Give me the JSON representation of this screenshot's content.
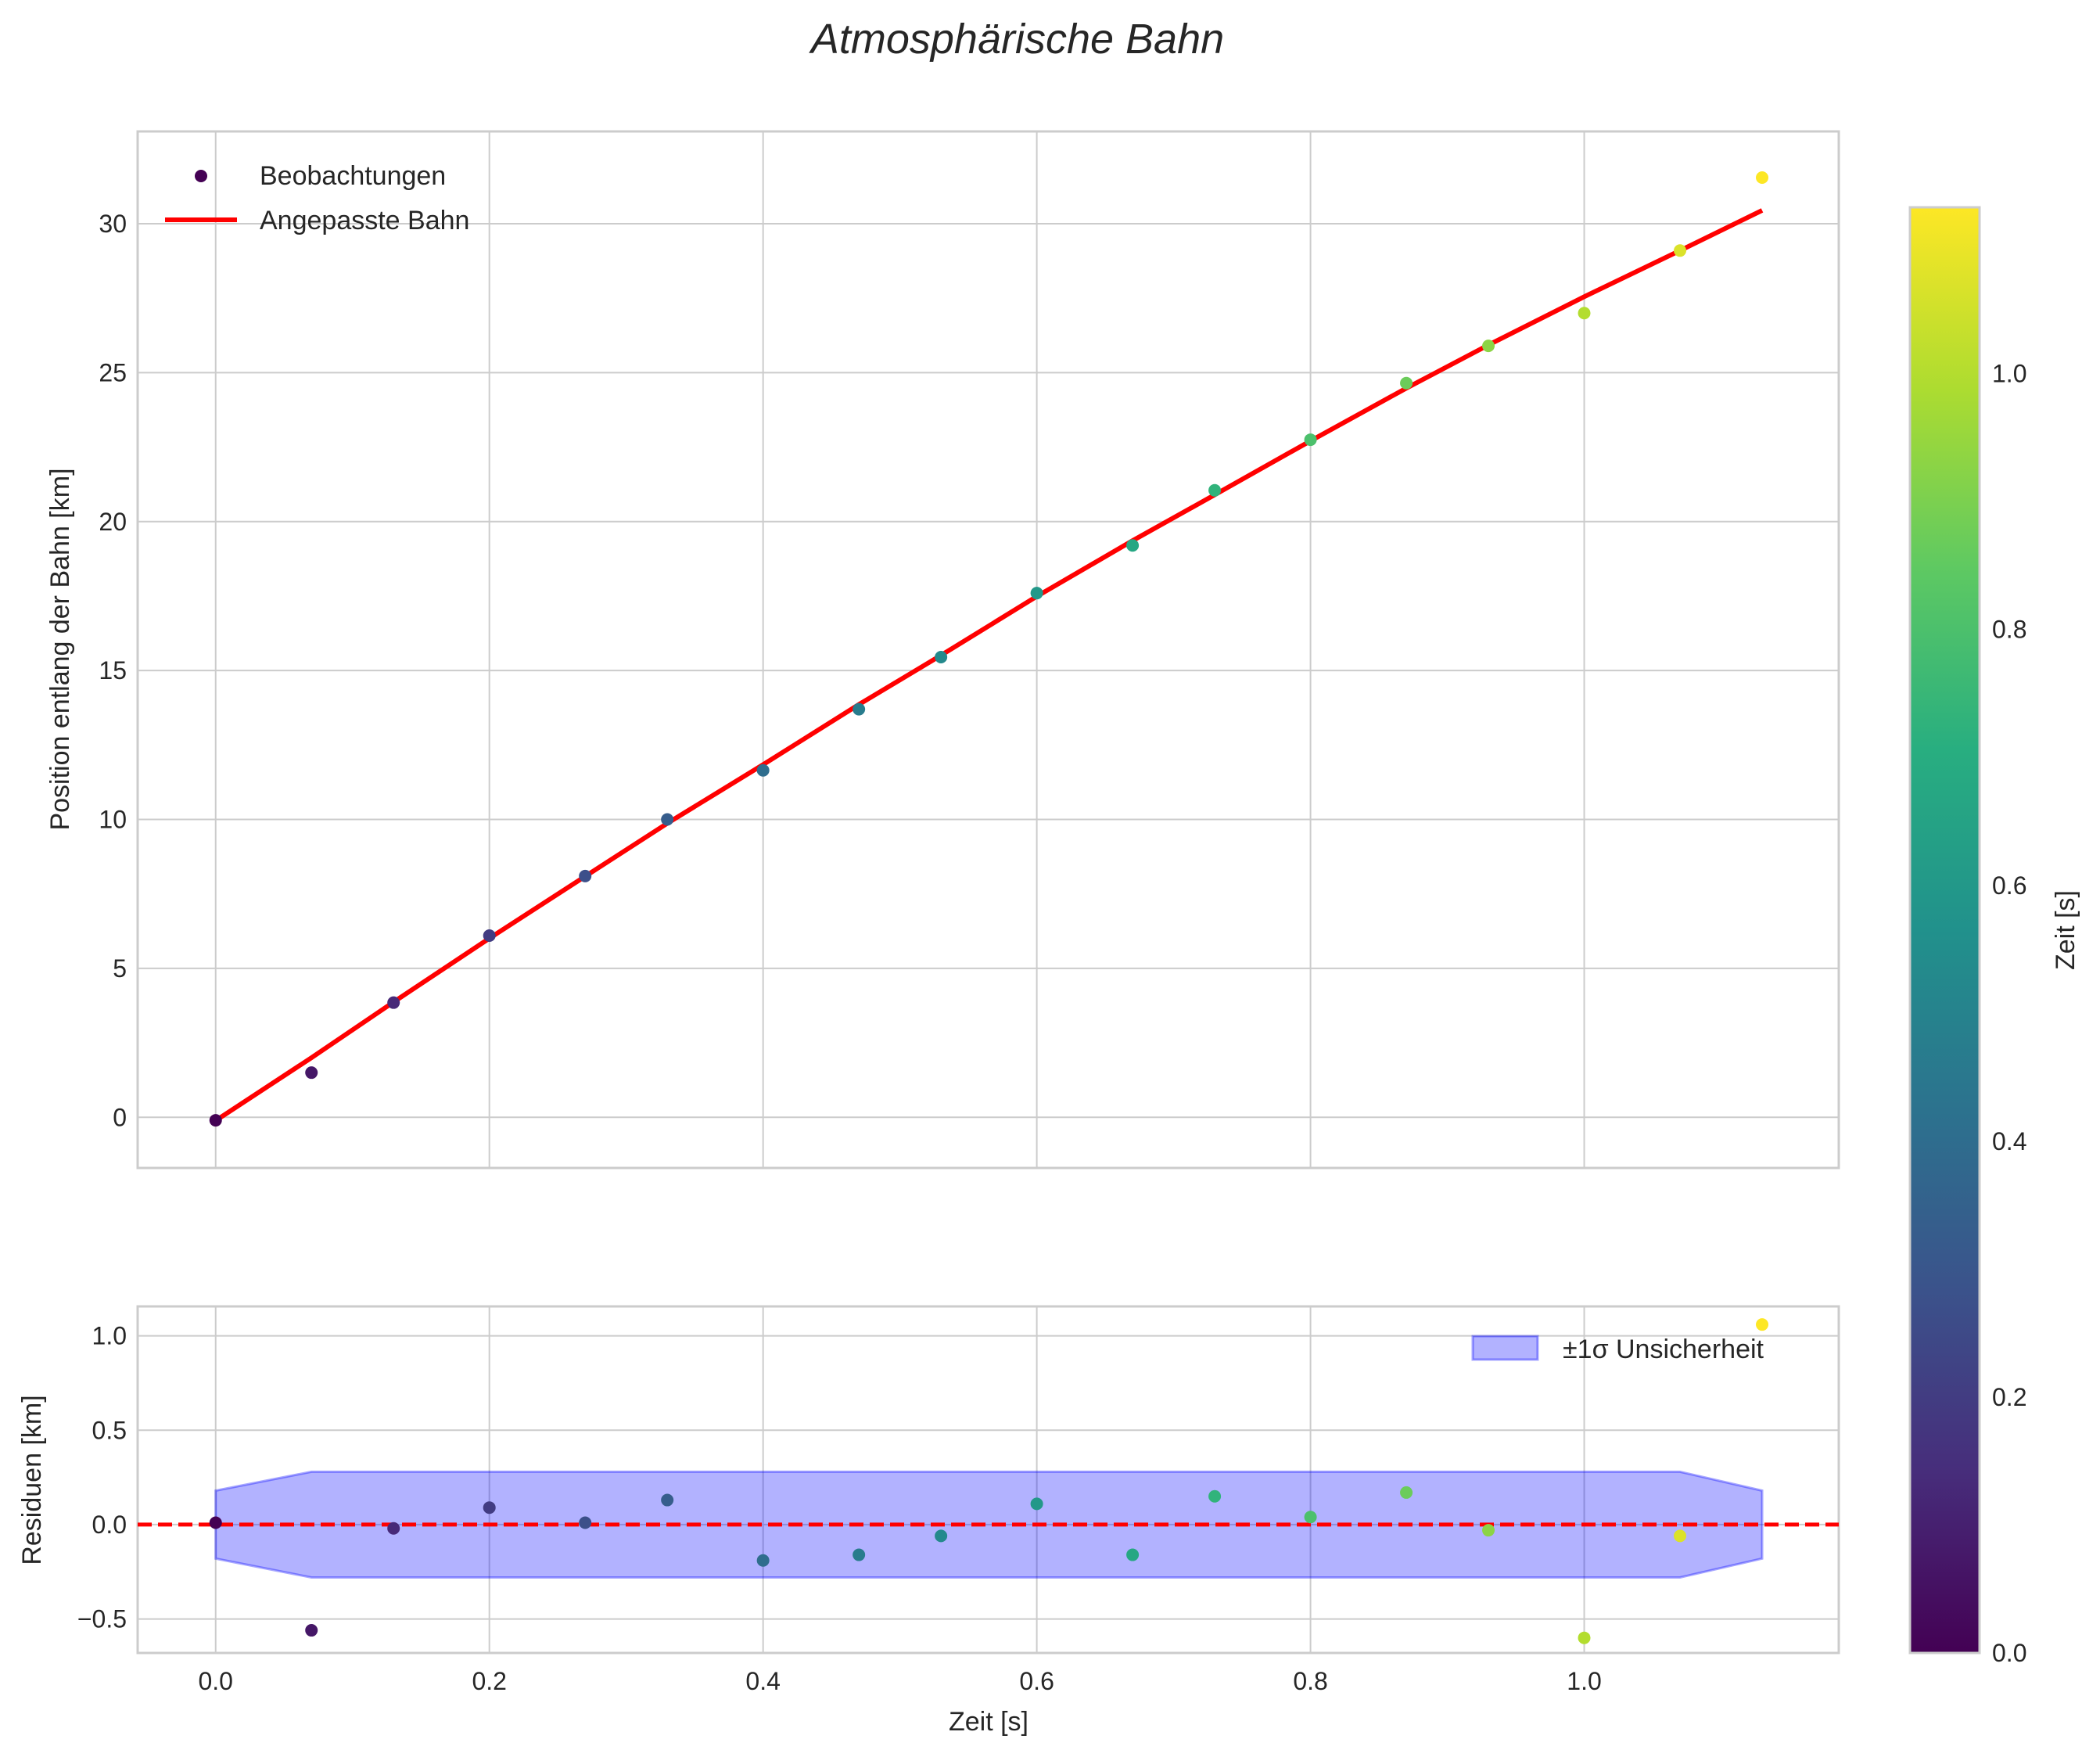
{
  "chart_data": [
    {
      "type": "scatter",
      "title": "Atmosphärische Bahn",
      "xlabel": "",
      "ylabel": "Position entlang der Bahn [km]",
      "xlim": [
        -0.057,
        1.186
      ],
      "ylim": [
        -1.7,
        33.1
      ],
      "xticks": [
        0.0,
        0.2,
        0.4,
        0.6,
        0.8,
        1.0
      ],
      "yticks": [
        0,
        5,
        10,
        15,
        20,
        25,
        30
      ],
      "ytick_labels": [
        "0",
        "5",
        "10",
        "15",
        "20",
        "25",
        "30"
      ],
      "grid": true,
      "legend_position": "top-left",
      "series": [
        {
          "name": "Beobachtungen",
          "kind": "scatter",
          "colormap": "viridis",
          "x": [
            0.0,
            0.07,
            0.13,
            0.2,
            0.27,
            0.33,
            0.4,
            0.47,
            0.53,
            0.6,
            0.67,
            0.73,
            0.8,
            0.87,
            0.93,
            1.0,
            1.07,
            1.13
          ],
          "y": [
            -0.1,
            1.5,
            3.85,
            6.1,
            8.1,
            10.0,
            11.65,
            13.7,
            15.45,
            17.6,
            19.2,
            21.05,
            22.75,
            24.65,
            25.9,
            27.0,
            29.1,
            31.55
          ]
        },
        {
          "name": "Angepasste Bahn",
          "kind": "line",
          "color": "#ff0000",
          "x": [
            0.0,
            0.07,
            0.13,
            0.2,
            0.27,
            0.33,
            0.4,
            0.47,
            0.53,
            0.6,
            0.67,
            0.73,
            0.8,
            0.87,
            0.93,
            1.0,
            1.07,
            1.13
          ],
          "y": [
            -0.11,
            2.0,
            3.87,
            6.01,
            8.09,
            9.87,
            11.84,
            13.86,
            15.51,
            17.49,
            19.36,
            20.9,
            22.71,
            24.48,
            25.93,
            27.55,
            29.1,
            30.45
          ]
        }
      ]
    },
    {
      "type": "scatter",
      "xlabel": "Zeit [s]",
      "ylabel": "Residuen [km]",
      "xlim": [
        -0.057,
        1.186
      ],
      "ylim": [
        -0.68,
        1.156
      ],
      "xticks": [
        0.0,
        0.2,
        0.4,
        0.6,
        0.8,
        1.0
      ],
      "xtick_labels": [
        "0.0",
        "0.2",
        "0.4",
        "0.6",
        "0.8",
        "1.0"
      ],
      "yticks": [
        -0.5,
        0.0,
        0.5,
        1.0
      ],
      "ytick_labels": [
        "−0.5",
        "0.0",
        "0.5",
        "1.0"
      ],
      "grid": true,
      "legend_position": "top-right",
      "zero_line_color": "#ff0000",
      "band": {
        "name": "±1σ Unsicherheit",
        "color": "#0000ff",
        "alpha": 0.3,
        "x": [
          0.0,
          0.07,
          1.07,
          1.13
        ],
        "sigma": [
          0.18,
          0.28,
          0.28,
          0.18
        ]
      },
      "residuals": {
        "x": [
          0.0,
          0.07,
          0.13,
          0.2,
          0.27,
          0.33,
          0.4,
          0.47,
          0.53,
          0.6,
          0.67,
          0.73,
          0.8,
          0.87,
          0.93,
          1.0,
          1.07,
          1.13
        ],
        "y": [
          0.01,
          -0.56,
          -0.02,
          0.09,
          0.01,
          0.13,
          -0.19,
          -0.16,
          -0.06,
          0.11,
          -0.16,
          0.15,
          0.04,
          0.17,
          -0.03,
          -0.6,
          -0.06,
          1.06
        ]
      }
    }
  ],
  "colorbar": {
    "label": "Zeit [s]",
    "colormap": "viridis",
    "range": [
      0.0,
      1.13
    ],
    "ticks": [
      0.0,
      0.2,
      0.4,
      0.6,
      0.8,
      1.0
    ],
    "tick_labels": [
      "0.0",
      "0.2",
      "0.4",
      "0.6",
      "0.8",
      "1.0"
    ]
  }
}
